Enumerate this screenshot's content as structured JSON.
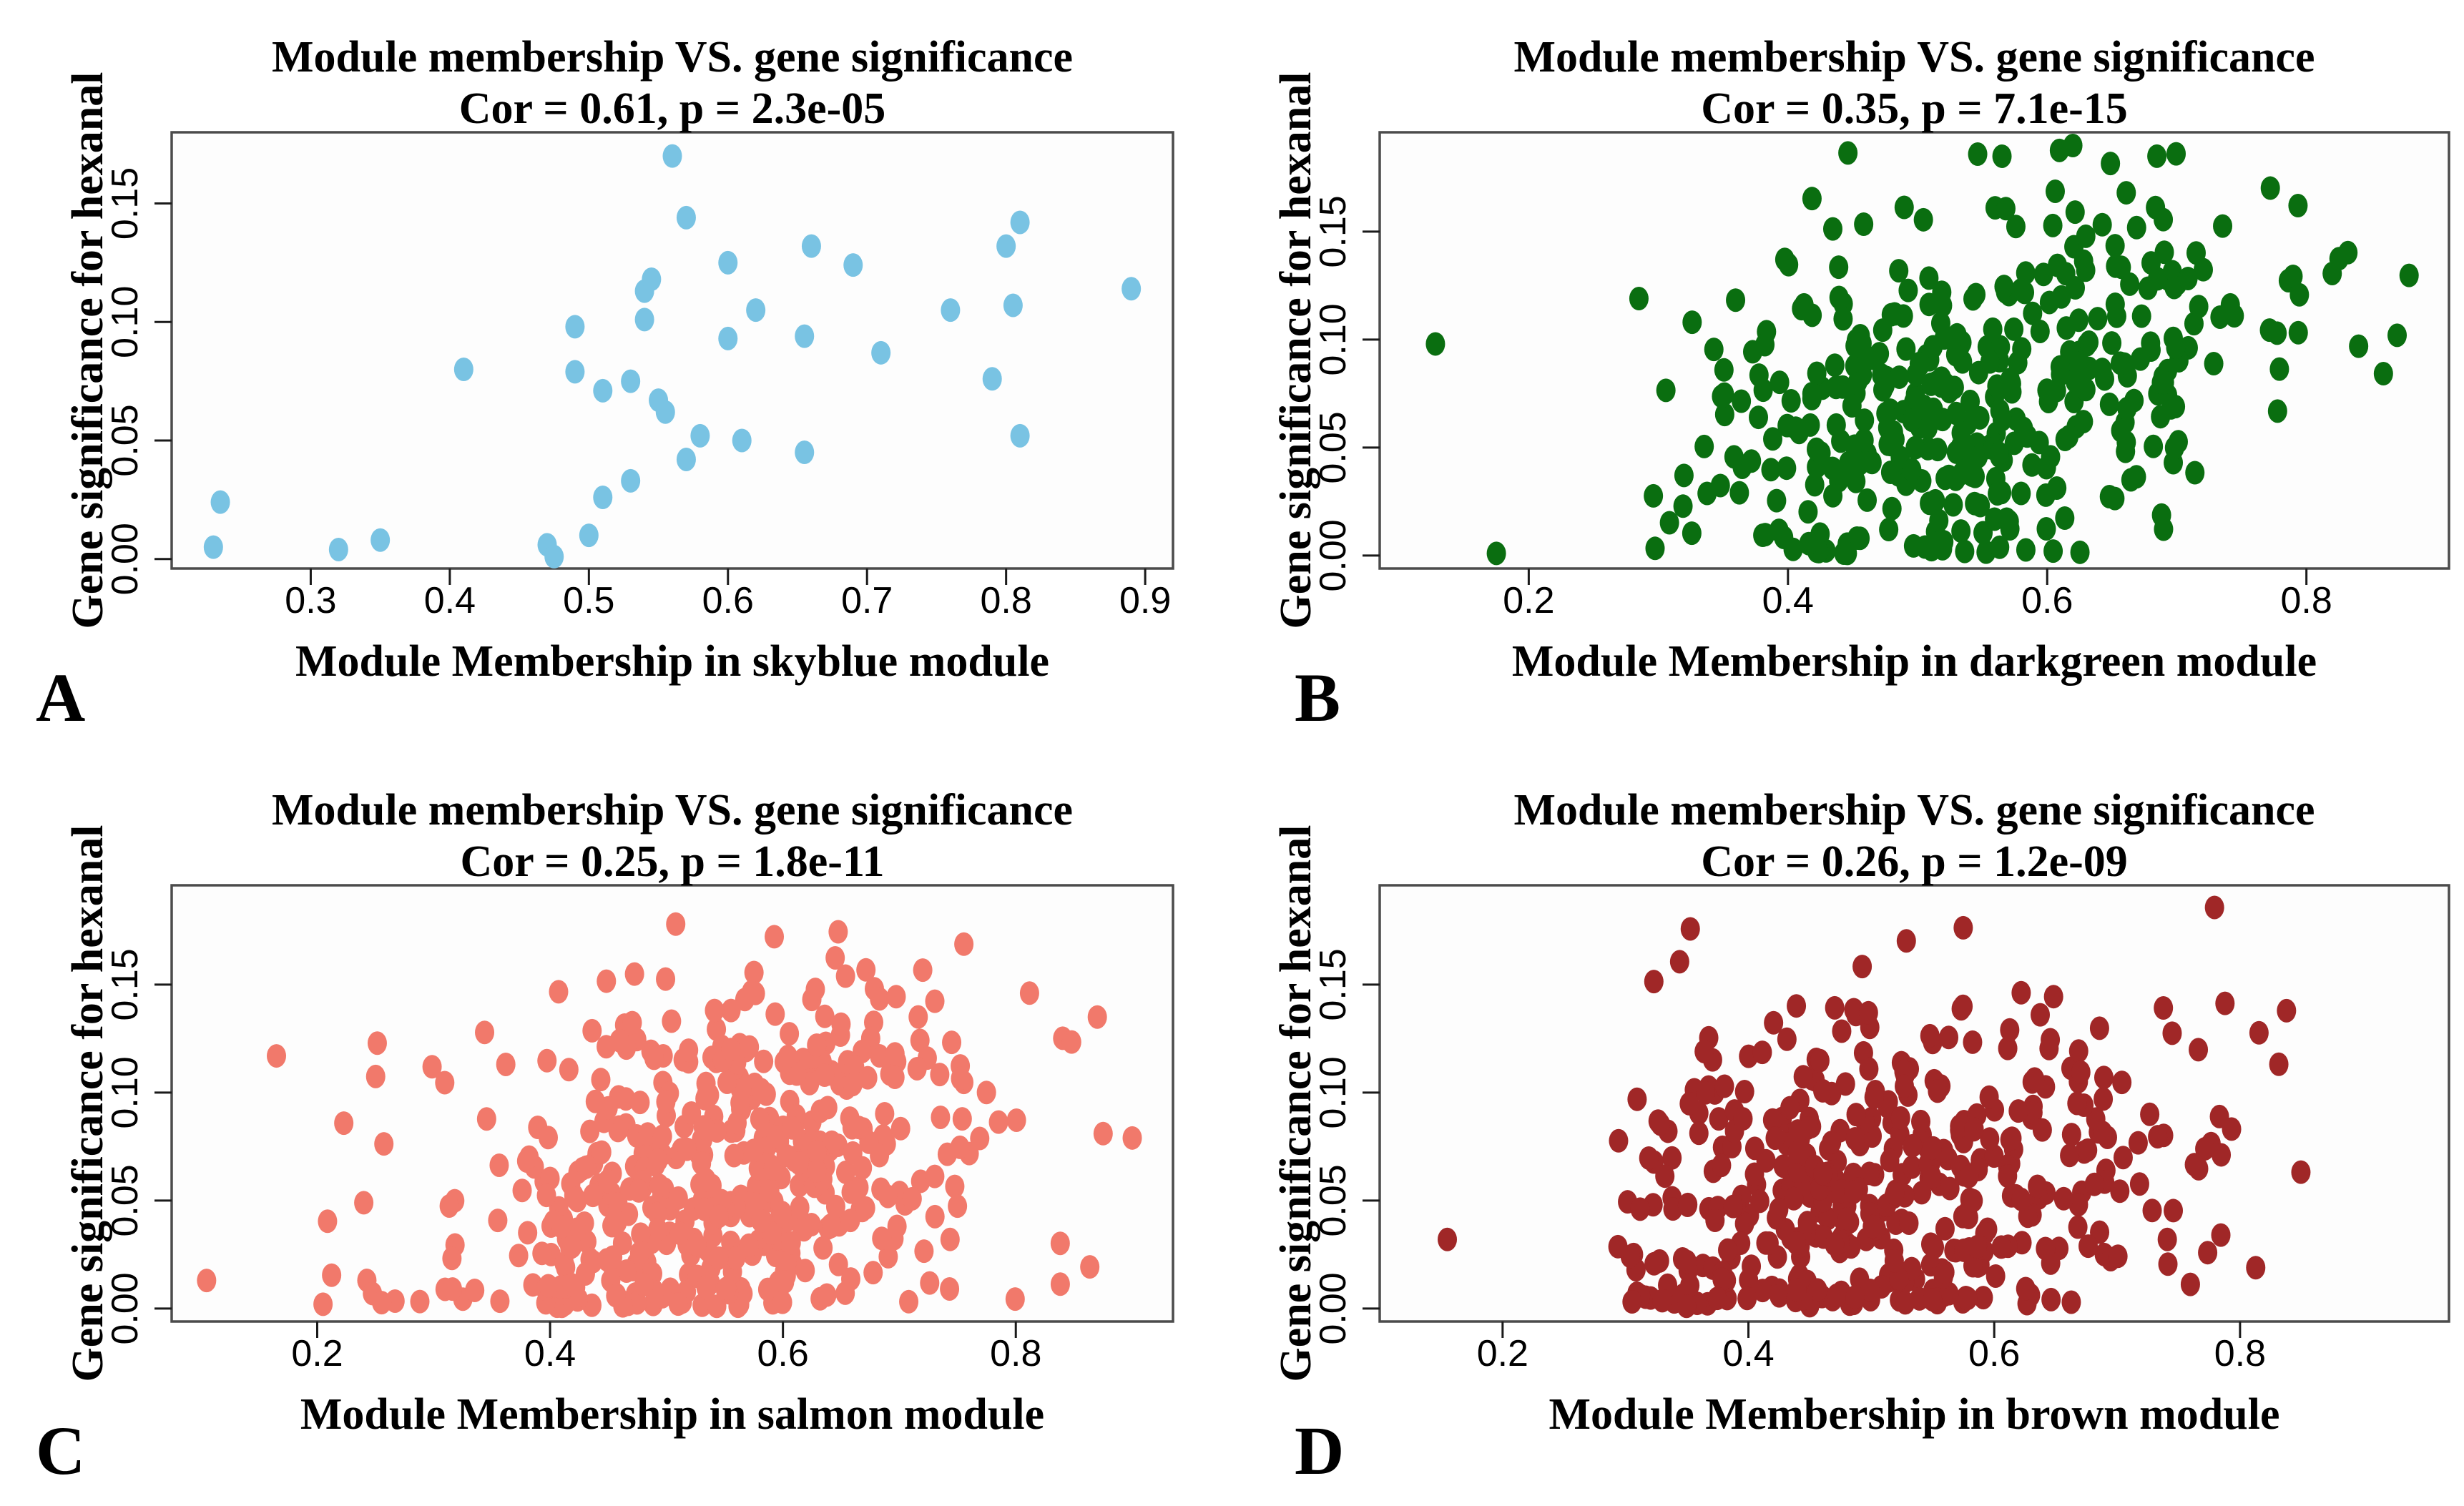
{
  "figure": {
    "kind": "scatter_grid_2x2",
    "background": "#ffffff",
    "frame_color": "#4b4b4b",
    "tick_color": "#1a1a1a",
    "text_color": "#000000",
    "shared_title": "Module membership VS. gene significance",
    "shared_ylabel": "Gene significance for hexanal"
  },
  "chart_data": [
    {
      "id": "A",
      "type": "scatter",
      "panel_letter": "A",
      "title": "Module membership VS. gene significance",
      "stats": "Cor = 0.61, p = 2.3e-05",
      "cor": 0.61,
      "p_value": "2.3e-05",
      "module": "skyblue",
      "xlabel": "Module Membership in skyblue module",
      "ylabel": "Gene significance for hexanal",
      "dot_color": "#79C3E3",
      "xlim": [
        0.2,
        0.92
      ],
      "ylim": [
        -0.004,
        0.18
      ],
      "x_ticks": [
        0.3,
        0.4,
        0.5,
        0.6,
        0.7,
        0.8,
        0.9
      ],
      "x_tick_labels": [
        "0.3",
        "0.4",
        "0.5",
        "0.6",
        "0.7",
        "0.8",
        "0.9"
      ],
      "y_ticks": [
        0.0,
        0.05,
        0.1,
        0.15
      ],
      "y_tick_labels": [
        "0.00",
        "0.05",
        "0.10",
        "0.15"
      ],
      "n_points": 39,
      "points": [
        [
          0.23,
          0.005
        ],
        [
          0.235,
          0.024
        ],
        [
          0.32,
          0.004
        ],
        [
          0.35,
          0.008
        ],
        [
          0.41,
          0.08
        ],
        [
          0.47,
          0.006
        ],
        [
          0.475,
          0.001
        ],
        [
          0.5,
          0.01
        ],
        [
          0.51,
          0.026
        ],
        [
          0.53,
          0.033
        ],
        [
          0.49,
          0.079
        ],
        [
          0.51,
          0.071
        ],
        [
          0.53,
          0.075
        ],
        [
          0.55,
          0.067
        ],
        [
          0.555,
          0.062
        ],
        [
          0.57,
          0.042
        ],
        [
          0.58,
          0.052
        ],
        [
          0.61,
          0.05
        ],
        [
          0.655,
          0.045
        ],
        [
          0.49,
          0.098
        ],
        [
          0.54,
          0.101
        ],
        [
          0.54,
          0.113
        ],
        [
          0.545,
          0.118
        ],
        [
          0.56,
          0.17
        ],
        [
          0.57,
          0.144
        ],
        [
          0.6,
          0.125
        ],
        [
          0.6,
          0.093
        ],
        [
          0.62,
          0.105
        ],
        [
          0.655,
          0.094
        ],
        [
          0.66,
          0.132
        ],
        [
          0.69,
          0.124
        ],
        [
          0.71,
          0.087
        ],
        [
          0.76,
          0.105
        ],
        [
          0.79,
          0.076
        ],
        [
          0.8,
          0.132
        ],
        [
          0.81,
          0.142
        ],
        [
          0.805,
          0.107
        ],
        [
          0.81,
          0.052
        ],
        [
          0.89,
          0.114
        ]
      ]
    },
    {
      "id": "B",
      "type": "scatter",
      "panel_letter": "B",
      "title": "Module membership VS. gene significance",
      "stats": "Cor = 0.35, p = 7.1e-15",
      "cor": 0.35,
      "p_value": "7.1e-15",
      "module": "darkgreen",
      "xlabel": "Module Membership in darkgreen module",
      "ylabel": "Gene significance for hexanal",
      "dot_color": "#0A6E10",
      "xlim": [
        0.085,
        0.91
      ],
      "ylim": [
        -0.006,
        0.196
      ],
      "x_ticks": [
        0.2,
        0.4,
        0.6,
        0.8
      ],
      "x_tick_labels": [
        "0.2",
        "0.4",
        "0.6",
        "0.8"
      ],
      "y_ticks": [
        0.0,
        0.05,
        0.1,
        0.15
      ],
      "y_tick_labels": [
        "0.00",
        "0.05",
        "0.10",
        "0.15"
      ],
      "n_points": 404,
      "cloud": {
        "seed": 7,
        "n": 400,
        "x_mean": 0.55,
        "x_sd": 0.12,
        "x_min": 0.29,
        "x_max": 0.88,
        "y_base": 0.078,
        "y_slope": 0.13,
        "y_noise_sd": 0.042,
        "y_min": 0.001,
        "y_max": 0.19
      },
      "outlier_points": [
        [
          0.128,
          0.098
        ],
        [
          0.175,
          0.001
        ],
        [
          0.285,
          0.119
        ],
        [
          0.87,
          0.102
        ]
      ]
    },
    {
      "id": "C",
      "type": "scatter",
      "panel_letter": "C",
      "title": "Module membership VS. gene significance",
      "stats": "Cor = 0.25, p = 1.8e-11",
      "cor": 0.25,
      "p_value": "1.8e-11",
      "module": "salmon",
      "xlabel": "Module Membership in salmon module",
      "ylabel": "Gene significance for hexanal",
      "dot_color": "#F1796B",
      "xlim": [
        0.075,
        0.935
      ],
      "ylim": [
        -0.006,
        0.196
      ],
      "x_ticks": [
        0.2,
        0.4,
        0.6,
        0.8
      ],
      "x_tick_labels": [
        "0.2",
        "0.4",
        "0.6",
        "0.8"
      ],
      "y_ticks": [
        0.0,
        0.05,
        0.1,
        0.15
      ],
      "y_tick_labels": [
        "0.00",
        "0.05",
        "0.10",
        "0.15"
      ],
      "n_points": 507,
      "cloud": {
        "seed": 13,
        "n": 500,
        "x_mean": 0.53,
        "x_sd": 0.12,
        "x_min": 0.17,
        "x_max": 0.9,
        "y_base": 0.062,
        "y_slope": 0.087,
        "y_noise_sd": 0.044,
        "y_min": 0.001,
        "y_max": 0.19
      },
      "outlier_points": [
        [
          0.105,
          0.013
        ],
        [
          0.165,
          0.117
        ],
        [
          0.205,
          0.002
        ],
        [
          0.24,
          0.049
        ],
        [
          0.87,
          0.135
        ],
        [
          0.875,
          0.081
        ],
        [
          0.9,
          0.079
        ]
      ]
    },
    {
      "id": "D",
      "type": "scatter",
      "panel_letter": "D",
      "title": "Module membership VS. gene significance",
      "stats": "Cor = 0.26, p = 1.2e-09",
      "cor": 0.26,
      "p_value": "1.2e-09",
      "module": "brown",
      "xlabel": "Module Membership in brown module",
      "ylabel": "Gene significance for hexanal",
      "dot_color": "#A02727",
      "xlim": [
        0.1,
        0.97
      ],
      "ylim": [
        -0.006,
        0.196
      ],
      "x_ticks": [
        0.2,
        0.4,
        0.6,
        0.8
      ],
      "x_tick_labels": [
        "0.2",
        "0.4",
        "0.6",
        "0.8"
      ],
      "y_ticks": [
        0.0,
        0.05,
        0.1,
        0.15
      ],
      "y_tick_labels": [
        "0.00",
        "0.05",
        "0.10",
        "0.15"
      ],
      "n_points": 441,
      "cloud": {
        "seed": 21,
        "n": 440,
        "x_mean": 0.5,
        "x_sd": 0.15,
        "x_min": 0.29,
        "x_max": 0.95,
        "y_base": 0.055,
        "y_slope": 0.084,
        "y_noise_sd": 0.045,
        "y_min": 0.001,
        "y_max": 0.19
      },
      "outlier_points": [
        [
          0.155,
          0.032
        ]
      ]
    }
  ]
}
